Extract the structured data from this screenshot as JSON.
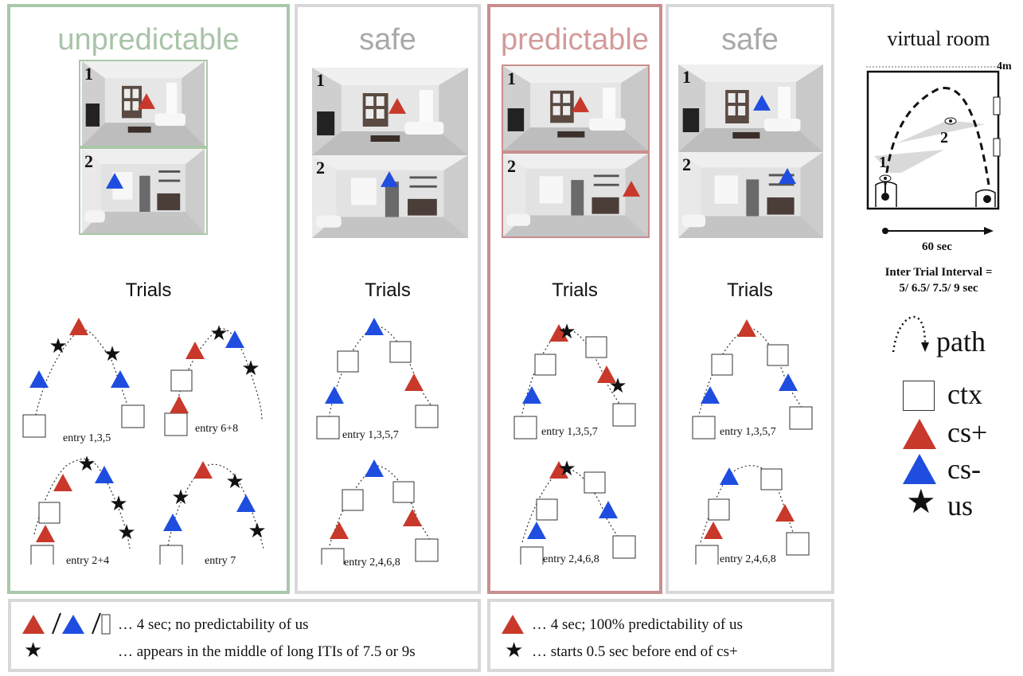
{
  "colors": {
    "cs_plus": "#c8392b",
    "cs_minus": "#1f4de0",
    "green": "#a9c8a9",
    "pink": "#c98e8e",
    "gray": "#d8d8d8",
    "title_gray": "#a9a9a9",
    "green_text": "#a8c4a8",
    "pink_text": "#d39b9b"
  },
  "panels": [
    {
      "title": "unpredictable",
      "trials": "Trials",
      "photo1": "1",
      "photo2": "2",
      "entries": [
        "entry 1,3,5",
        "entry 6+8",
        "entry 2+4",
        "entry 7"
      ]
    },
    {
      "title": "safe",
      "trials": "Trials",
      "photo1": "1",
      "photo2": "2",
      "entries": [
        "entry 1,3,5,7",
        "entry 2,4,6,8"
      ]
    },
    {
      "title": "predictable",
      "trials": "Trials",
      "photo1": "1",
      "photo2": "2",
      "entries": [
        "entry 1,3,5,7",
        "entry 2,4,6,8"
      ]
    },
    {
      "title": "safe",
      "trials": "Trials",
      "photo1": "1",
      "photo2": "2",
      "entries": [
        "entry 1,3,5,7",
        "entry 2,4,6,8"
      ]
    }
  ],
  "room": {
    "title": "virtual room",
    "size": "4m",
    "pos1": "1",
    "pos2": "2",
    "duration": "60 sec",
    "iti_line1": "Inter Trial Interval =",
    "iti_line2": "5/ 6.5/ 7.5/ 9 sec"
  },
  "legend": {
    "path": "path",
    "ctx": "ctx",
    "cs_plus": "cs+",
    "cs_minus": "cs-",
    "us": "us"
  },
  "notes": {
    "left_line1": "… 4 sec; no predictability of us",
    "left_line2": "… appears in the middle of long ITIs of 7.5 or 9s",
    "right_line1": "… 4 sec; 100% predictability of us",
    "right_line2": "… starts 0.5 sec before end of cs+"
  }
}
